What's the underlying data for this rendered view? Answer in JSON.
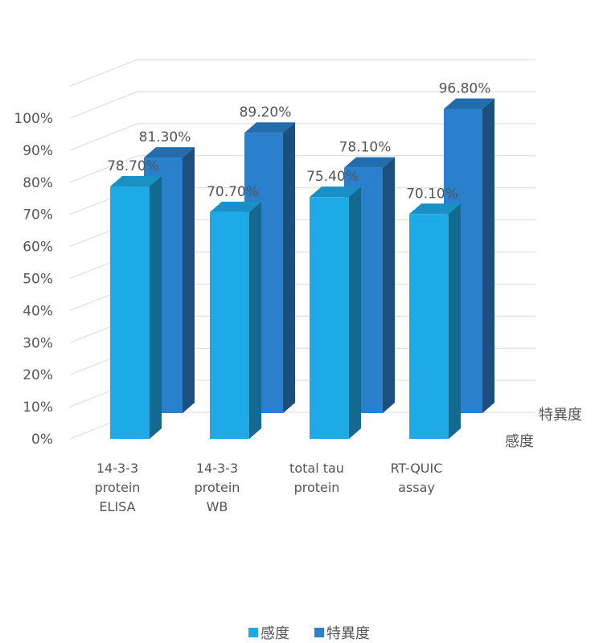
{
  "chart_data": {
    "type": "bar",
    "three_d": true,
    "categories": [
      [
        "14-3-3",
        "protein",
        "ELISA"
      ],
      [
        "14-3-3",
        "protein",
        "WB"
      ],
      [
        "total tau",
        "protein"
      ],
      [
        "RT-QUIC",
        "assay"
      ]
    ],
    "series": [
      {
        "name": "感度",
        "values": [
          78.7,
          70.7,
          75.4,
          70.1
        ],
        "labels": [
          "78.70%",
          "70.70%",
          "75.40%",
          "70.10%"
        ],
        "color": "#1eaae6"
      },
      {
        "name": "特異度",
        "values": [
          81.3,
          89.2,
          78.1,
          96.8
        ],
        "labels": [
          "81.30%",
          "89.20%",
          "78.10%",
          "96.80%"
        ],
        "color": "#2a80cc"
      }
    ],
    "y_ticks": [
      "0%",
      "10%",
      "20%",
      "30%",
      "40%",
      "50%",
      "60%",
      "70%",
      "80%",
      "90%",
      "100%"
    ],
    "ylim": [
      0,
      110
    ],
    "grid": true,
    "legend": "bottom"
  }
}
